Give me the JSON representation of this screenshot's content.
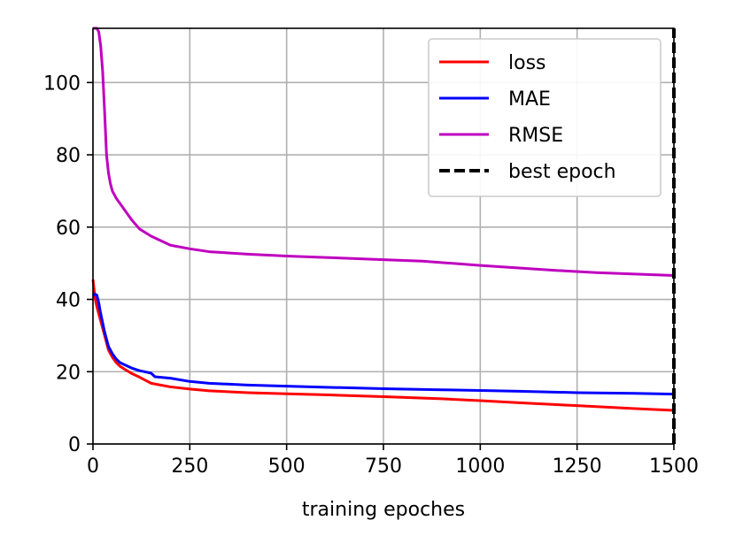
{
  "chart_data": {
    "type": "line",
    "title": "",
    "xlabel": "training epoches",
    "ylabel": "",
    "xlim": [
      0,
      1500
    ],
    "ylim": [
      0,
      115
    ],
    "xticks": [
      "0",
      "250",
      "500",
      "750",
      "1000",
      "1250",
      "1500"
    ],
    "xtick_values": [
      0,
      250,
      500,
      750,
      1000,
      1250,
      1500
    ],
    "yticks": [
      "0",
      "20",
      "40",
      "60",
      "80",
      "100"
    ],
    "ytick_values": [
      0,
      20,
      40,
      60,
      80,
      100
    ],
    "grid": true,
    "legend_position": "top-right",
    "series": [
      {
        "name": "loss",
        "color": "#ff0000",
        "style": "solid",
        "x": [
          0,
          5,
          10,
          20,
          30,
          40,
          50,
          60,
          70,
          80,
          100,
          120,
          150,
          200,
          250,
          300,
          400,
          500,
          600,
          750,
          900,
          1000,
          1100,
          1250,
          1400,
          1500
        ],
        "y": [
          45.5,
          40.5,
          38,
          34,
          30,
          26,
          24,
          22.5,
          21.5,
          20.8,
          19.5,
          18.5,
          16.8,
          15.8,
          15.2,
          14.7,
          14.2,
          13.9,
          13.6,
          13.1,
          12.5,
          12.0,
          11.4,
          10.6,
          9.8,
          9.3
        ]
      },
      {
        "name": "MAE",
        "color": "#0000ff",
        "style": "solid",
        "x": [
          0,
          5,
          10,
          15,
          20,
          30,
          40,
          50,
          60,
          70,
          80,
          100,
          120,
          150,
          160,
          200,
          250,
          300,
          400,
          500,
          600,
          750,
          900,
          1000,
          1100,
          1250,
          1400,
          1500
        ],
        "y": [
          41,
          41.5,
          41.2,
          39,
          36,
          31,
          27,
          25,
          23.5,
          22.5,
          22,
          21,
          20.3,
          19.6,
          18.6,
          18.2,
          17.3,
          16.8,
          16.3,
          16.0,
          15.7,
          15.3,
          15.0,
          14.8,
          14.6,
          14.2,
          14.0,
          13.8
        ]
      },
      {
        "name": "RMSE",
        "color": "#bf00bf",
        "style": "solid",
        "x": [
          0,
          5,
          10,
          15,
          20,
          25,
          30,
          35,
          40,
          45,
          50,
          60,
          70,
          80,
          100,
          120,
          150,
          180,
          200,
          250,
          300,
          400,
          500,
          600,
          750,
          850,
          900,
          1000,
          1100,
          1200,
          1300,
          1400,
          1500
        ],
        "y": [
          115,
          115,
          115,
          114,
          110,
          103,
          92,
          80,
          75,
          72,
          70,
          68,
          66.5,
          65,
          62,
          59.5,
          57.5,
          56,
          55,
          54,
          53.2,
          52.5,
          52.0,
          51.6,
          51.0,
          50.6,
          50.2,
          49.4,
          48.7,
          48.0,
          47.4,
          47.0,
          46.6
        ]
      },
      {
        "name": "best epoch",
        "color": "#000000",
        "style": "dashed",
        "x": [
          1500,
          1500
        ],
        "y": [
          0,
          115
        ]
      }
    ]
  }
}
